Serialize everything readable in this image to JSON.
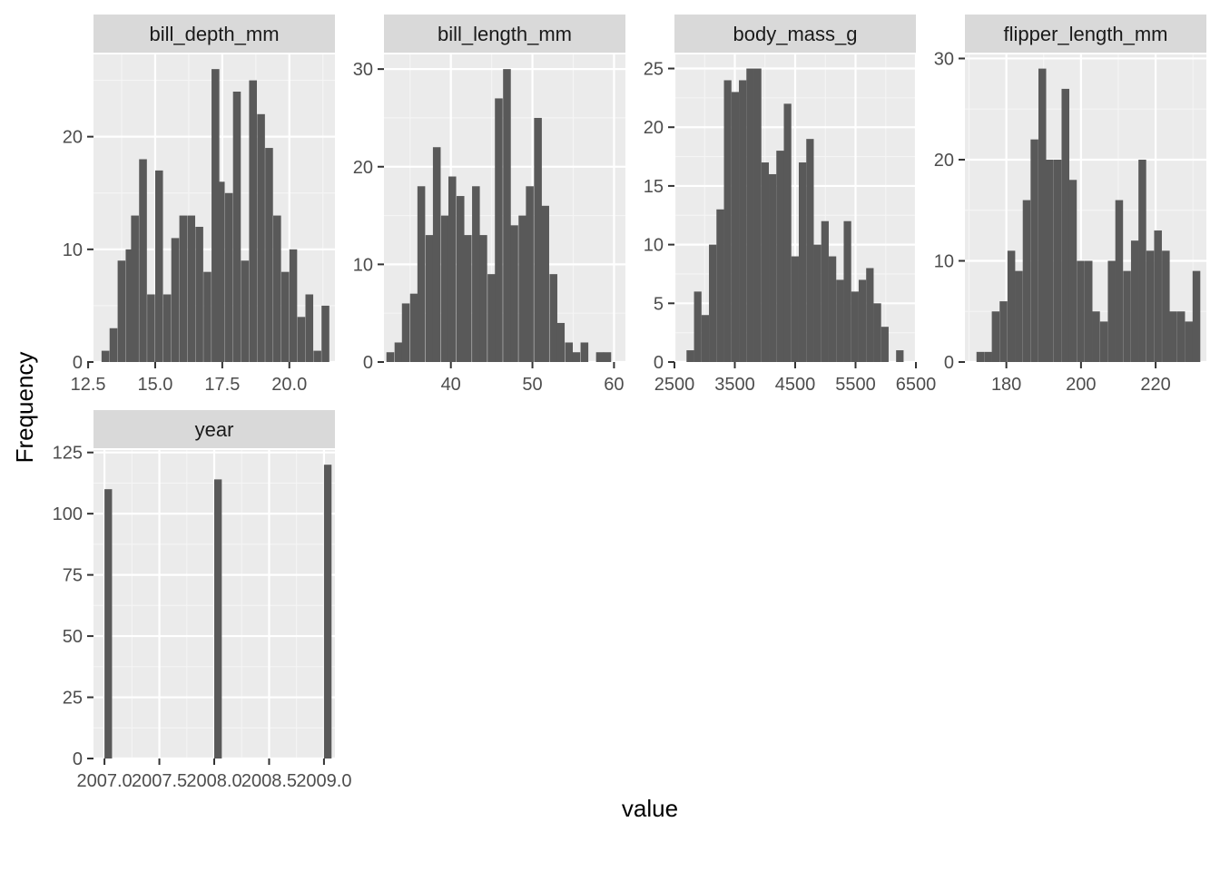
{
  "colors": {
    "panel_background": "#EBEBEB",
    "strip_background": "#D9D9D9",
    "grid_major": "#FFFFFF",
    "grid_minor": "#F5F5F5",
    "bar_fill": "#595959",
    "tick_color": "#333333"
  },
  "chart_data": {
    "type": "bar",
    "facet_layout": "facet_wrap, free scales, 4 columns",
    "xlabel": "value",
    "ylabel": "Frequency",
    "grid": true,
    "panels": [
      {
        "strip": "bill_depth_mm",
        "binwidth": 0.29,
        "bins_start": [
          13.0,
          13.3,
          13.6,
          13.9,
          14.1,
          14.4,
          14.7,
          15.0,
          15.3,
          15.6,
          15.9,
          16.2,
          16.5,
          16.8,
          17.1,
          17.3,
          17.6,
          17.9,
          18.2,
          18.5,
          18.8,
          19.1,
          19.4,
          19.7,
          20.0,
          20.3,
          20.6,
          20.9,
          21.2
        ],
        "counts": [
          1,
          3,
          9,
          10,
          13,
          18,
          6,
          17,
          6,
          11,
          13,
          13,
          12,
          8,
          26,
          16,
          15,
          24,
          9,
          25,
          22,
          19,
          13,
          8,
          10,
          4,
          6,
          1,
          5
        ],
        "xlim": [
          12.7,
          21.7
        ],
        "ylim": [
          0,
          27.3
        ],
        "xticks": [
          12.5,
          15.0,
          17.5,
          20.0
        ],
        "xtick_labels": [
          "12.5",
          "15.0",
          "17.5",
          "20.0"
        ],
        "yticks": [
          0,
          10,
          20
        ],
        "ytick_labels": [
          "0",
          "10",
          "20"
        ]
      },
      {
        "strip": "bill_length_mm",
        "binwidth": 0.95,
        "bins_start": [
          32.1,
          33.1,
          34.0,
          35.0,
          35.9,
          36.9,
          37.8,
          38.8,
          39.7,
          40.7,
          41.6,
          42.6,
          43.5,
          44.5,
          45.4,
          46.4,
          47.3,
          48.3,
          49.2,
          50.2,
          51.1,
          52.1,
          53.0,
          54.0,
          54.9,
          55.9,
          56.8,
          57.8,
          58.7
        ],
        "counts": [
          1,
          2,
          6,
          7,
          18,
          13,
          22,
          15,
          19,
          17,
          13,
          18,
          13,
          9,
          27,
          30,
          14,
          15,
          18,
          25,
          16,
          9,
          4,
          2,
          1,
          2,
          0,
          1,
          1
        ],
        "xlim": [
          31.8,
          61.4
        ],
        "ylim": [
          0,
          31.5
        ],
        "xticks": [
          40,
          50,
          60
        ],
        "xtick_labels": [
          "40",
          "50",
          "60"
        ],
        "yticks": [
          0,
          10,
          20,
          30
        ],
        "ytick_labels": [
          "0",
          "10",
          "20",
          "30"
        ]
      },
      {
        "strip": "body_mass_g",
        "binwidth": 124,
        "bins_start": [
          2700,
          2824,
          2948,
          3072,
          3196,
          3320,
          3444,
          3568,
          3692,
          3816,
          3940,
          4064,
          4188,
          4312,
          4436,
          4560,
          4684,
          4808,
          4932,
          5056,
          5180,
          5304,
          5428,
          5552,
          5676,
          5800,
          5924,
          6048,
          6172
        ],
        "counts": [
          1,
          6,
          4,
          10,
          13,
          24,
          23,
          24,
          25,
          25,
          17,
          16,
          18,
          22,
          9,
          17,
          19,
          10,
          12,
          9,
          7,
          12,
          6,
          7,
          8,
          5,
          3,
          0,
          1
        ],
        "xlim": [
          2500,
          6500
        ],
        "ylim": [
          0,
          26.2
        ],
        "xticks": [
          2500,
          3500,
          4500,
          5500,
          6500
        ],
        "xtick_labels": [
          "2500",
          "3500",
          "4500",
          "5500",
          "6500"
        ],
        "yticks": [
          0,
          5,
          10,
          15,
          20,
          25
        ],
        "ytick_labels": [
          "0",
          "5",
          "10",
          "15",
          "20",
          "25"
        ]
      },
      {
        "strip": "flipper_length_mm",
        "binwidth": 2.07,
        "bins_start": [
          172.0,
          174.1,
          176.1,
          178.2,
          180.3,
          182.3,
          184.4,
          186.5,
          188.6,
          190.6,
          192.7,
          194.8,
          196.8,
          198.9,
          201.0,
          203.0,
          205.1,
          207.2,
          209.2,
          211.3,
          213.4,
          215.4,
          217.5,
          219.6,
          221.7,
          223.7,
          225.8,
          227.9,
          229.9
        ],
        "counts": [
          1,
          1,
          5,
          6,
          11,
          9,
          16,
          22,
          29,
          20,
          20,
          27,
          18,
          10,
          10,
          5,
          4,
          10,
          16,
          9,
          12,
          20,
          11,
          13,
          11,
          5,
          5,
          4,
          9
        ],
        "xlim": [
          168.9,
          233.6
        ],
        "ylim": [
          0,
          30.4
        ],
        "xticks": [
          180,
          200,
          220
        ],
        "xtick_labels": [
          "180",
          "200",
          "220"
        ],
        "yticks": [
          0,
          10,
          20,
          30
        ],
        "ytick_labels": [
          "0",
          "10",
          "20",
          "30"
        ]
      },
      {
        "strip": "year",
        "binwidth": 0.069,
        "bins_start": [
          2007.0,
          2008.0,
          2009.0
        ],
        "counts": [
          110,
          114,
          120
        ],
        "xlim": [
          2006.9,
          2009.1
        ],
        "ylim": [
          0,
          126
        ],
        "xticks": [
          2007.0,
          2007.5,
          2008.0,
          2008.5,
          2009.0
        ],
        "xtick_labels": [
          "2007.0",
          "2007.5",
          "2008.0",
          "2008.5",
          "2009.0"
        ],
        "yticks": [
          0,
          25,
          50,
          75,
          100,
          125
        ],
        "ytick_labels": [
          "0",
          "25",
          "50",
          "75",
          "100",
          "125"
        ]
      }
    ]
  }
}
